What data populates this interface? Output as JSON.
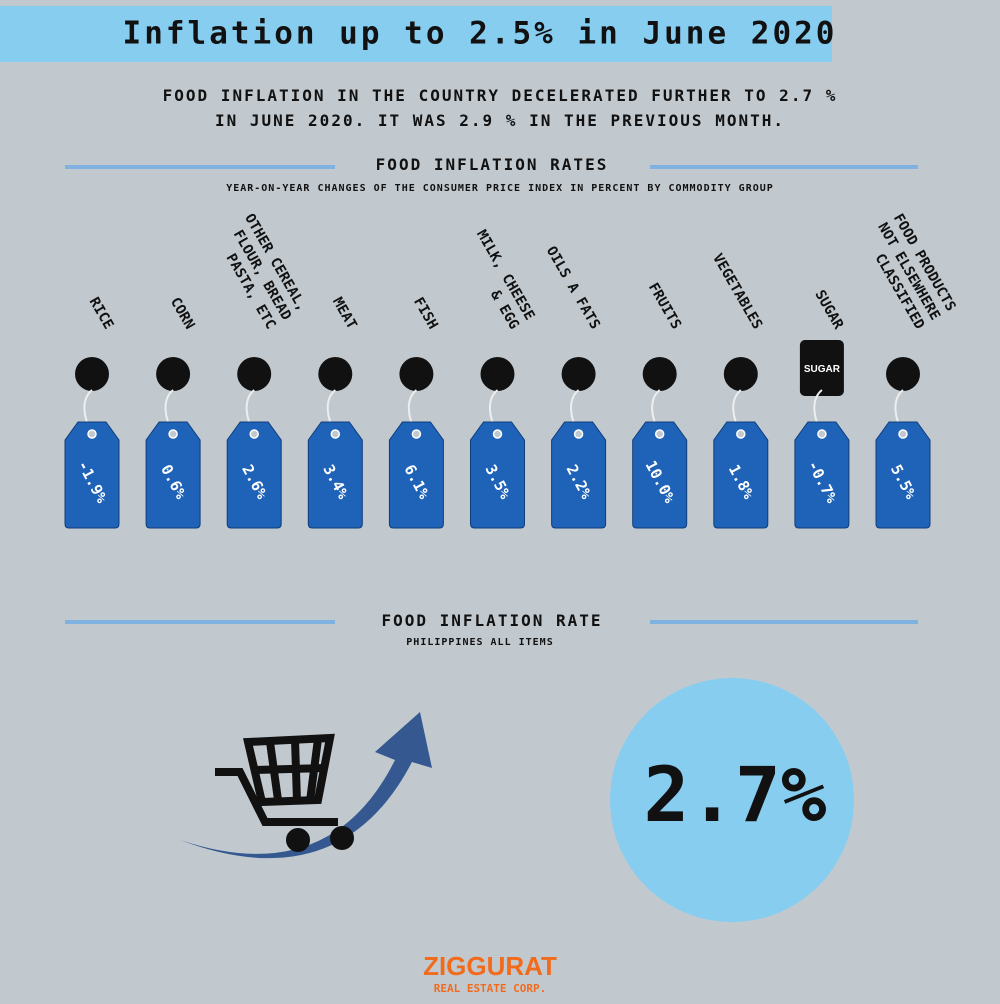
{
  "header": {
    "title": "Inflation up to 2.5% in June 2020"
  },
  "intro": {
    "lines": [
      "FOOD INFLATION IN THE COUNTRY DECELERATED FURTHER TO 2.7 %",
      "IN JUNE 2020. IT WAS 2.9 % IN THE PREVIOUS MONTH."
    ]
  },
  "rates_section": {
    "title": "FOOD INFLATION RATES",
    "subtitle": "YEAR-ON-YEAR CHANGES OF THE CONSUMER PRICE INDEX IN PERCENT BY COMMODITY GROUP",
    "items": [
      {
        "label": [
          "RICE"
        ],
        "value": "-1.9%"
      },
      {
        "label": [
          "CORN"
        ],
        "value": "0.6%"
      },
      {
        "label": [
          "OTHER CEREAL,",
          "FLOUR, BREAD",
          "PASTA, ETC"
        ],
        "value": "2.6%"
      },
      {
        "label": [
          "MEAT"
        ],
        "value": "3.4%"
      },
      {
        "label": [
          "FISH"
        ],
        "value": "6.1%"
      },
      {
        "label": [
          "MILK, CHEESE",
          "& EGG"
        ],
        "value": "3.5%"
      },
      {
        "label": [
          "OILS A FATS"
        ],
        "value": "2.2%"
      },
      {
        "label": [
          "FRUITS"
        ],
        "value": "10.0%"
      },
      {
        "label": [
          "VEGETABLES"
        ],
        "value": "1.8%"
      },
      {
        "label": [
          "SUGAR"
        ],
        "value": "-0.7%"
      },
      {
        "label": [
          "FOOD PRODUCTS",
          "NOT ELSEWHERE",
          "CLASSIFIED"
        ],
        "value": "5.5%"
      }
    ]
  },
  "overall_section": {
    "title": "FOOD INFLATION RATE",
    "subtitle": "PHILIPPINES ALL ITEMS",
    "value": "2.7%",
    "sugar_icon": "SUGAR"
  },
  "footer": {
    "brand": "ZIGGURAT",
    "tagline": "REAL ESTATE CORP."
  }
}
